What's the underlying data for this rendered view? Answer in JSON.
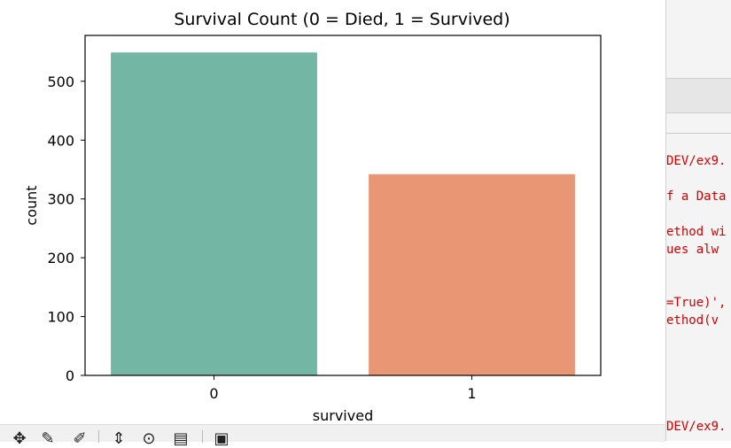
{
  "chart_data": {
    "type": "bar",
    "title": "Survival Count (0 = Died, 1 = Survived)",
    "xlabel": "survived",
    "ylabel": "count",
    "categories": [
      "0",
      "1"
    ],
    "values": [
      549,
      342
    ],
    "colors": [
      "#73b6a3",
      "#e99675"
    ],
    "ylim": [
      0,
      578
    ],
    "yticks": [
      0,
      100,
      200,
      300,
      400,
      500
    ],
    "grid": false
  },
  "toolbar": {
    "icons": [
      "move-icon",
      "zoom-icon",
      "select-icon",
      "adjust-icon",
      "search-icon",
      "subplots-icon",
      "save-icon"
    ]
  },
  "editor": {
    "lines": [
      "DEV/ex9.",
      "f a Data",
      "ethod wi",
      "ues alw",
      "=True)',",
      "ethod(v",
      "DEV/ex9."
    ]
  }
}
